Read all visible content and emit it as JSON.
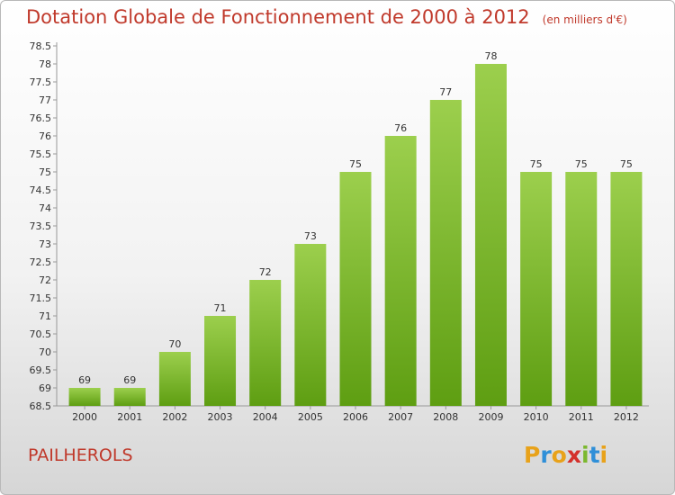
{
  "header": {
    "title": "Dotation Globale de Fonctionnement de 2000 à 2012",
    "unit": "(en milliers d'€)"
  },
  "footer": {
    "place": "PAILHEROLS",
    "logo": "Proxiti"
  },
  "colors": {
    "title": "#c0392b",
    "bar_top": "#9ccf4d",
    "bar_bottom": "#5e9e12",
    "logo_p": "#e8a21a",
    "logo_r": "#2f8fd8",
    "logo_o": "#e8a21a",
    "logo_x": "#d4302b",
    "logo_i": "#7cb82f",
    "logo_t": "#2f8fd8",
    "logo_i2": "#e8a21a"
  },
  "chart_data": {
    "type": "bar",
    "title": "Dotation Globale de Fonctionnement de 2000 à 2012",
    "subtitle": "(en milliers d'€)",
    "xlabel": "",
    "ylabel": "",
    "categories": [
      "2000",
      "2001",
      "2002",
      "2003",
      "2004",
      "2005",
      "2006",
      "2007",
      "2008",
      "2009",
      "2010",
      "2011",
      "2012"
    ],
    "values": [
      69,
      69,
      70,
      71,
      72,
      73,
      75,
      76,
      77,
      78,
      75,
      75,
      75
    ],
    "ylim": [
      68.5,
      78.5
    ],
    "ytick_step": 0.5,
    "ytick_labels": [
      "68.5",
      "69",
      "69.5",
      "70",
      "70.5",
      "71",
      "71.5",
      "72",
      "72.5",
      "73",
      "73.5",
      "74",
      "74.5",
      "75",
      "75.5",
      "76",
      "76.5",
      "77",
      "77.5",
      "78",
      "78.5"
    ],
    "grid": false,
    "legend": "none"
  }
}
